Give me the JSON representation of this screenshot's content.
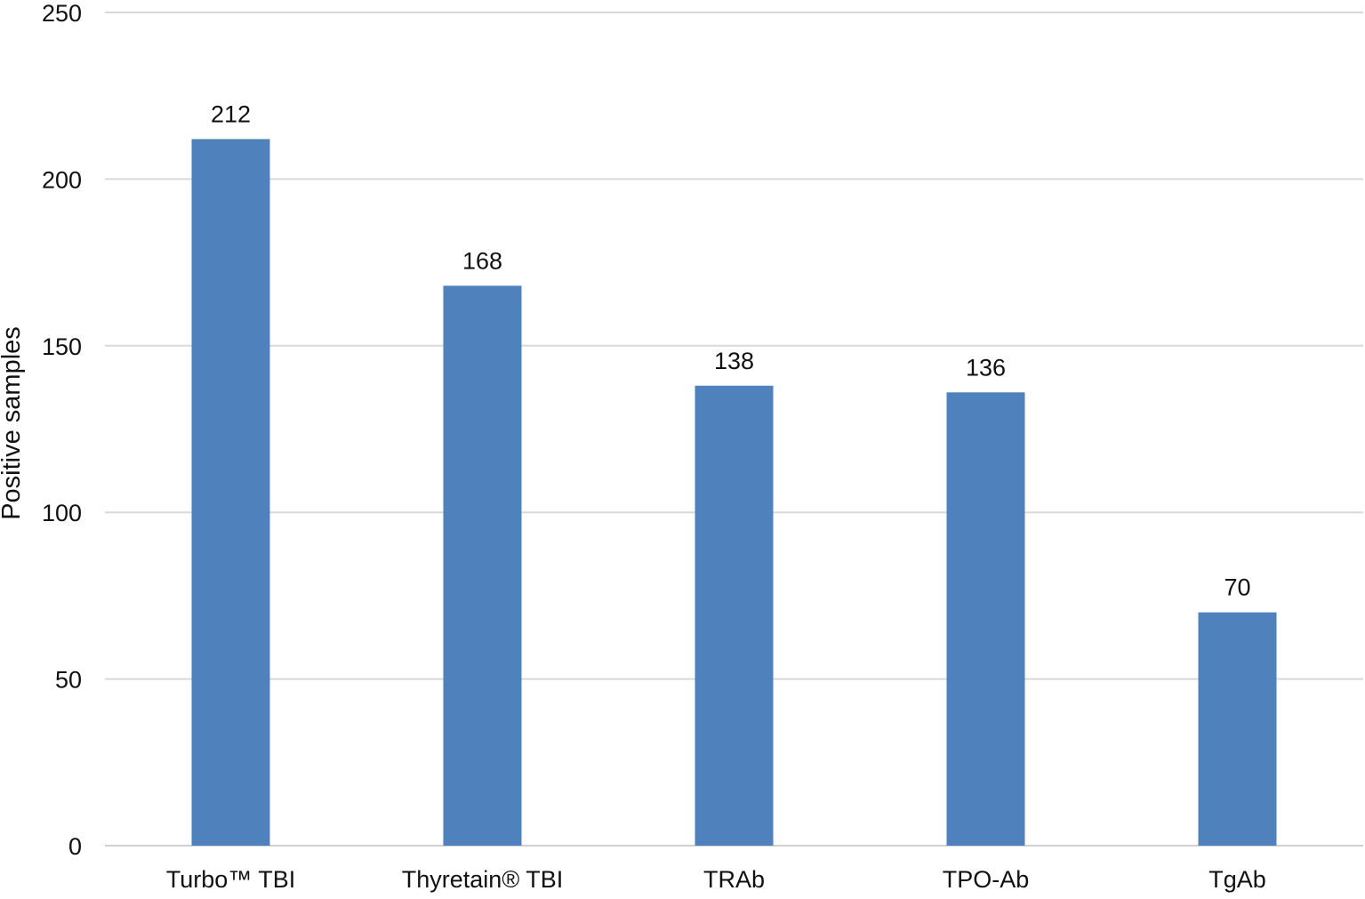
{
  "chart_data": {
    "type": "bar",
    "categories": [
      "Turbo™ TBI",
      "Thyretain® TBI",
      "TRAb",
      "TPO-Ab",
      "TgAb"
    ],
    "values": [
      212,
      168,
      138,
      136,
      70
    ],
    "data_labels": [
      "212",
      "168",
      "138",
      "136",
      "70"
    ],
    "title": "",
    "xlabel": "",
    "ylabel": "Positive samples",
    "ylim": [
      0,
      250
    ],
    "yticks": [
      0,
      50,
      100,
      150,
      200,
      250
    ],
    "ytick_labels": [
      "0",
      "50",
      "100",
      "150",
      "200",
      "250"
    ],
    "grid": true,
    "legend": "none",
    "bar_color": "#4f81bd",
    "grid_color": "#d9d9d9"
  }
}
